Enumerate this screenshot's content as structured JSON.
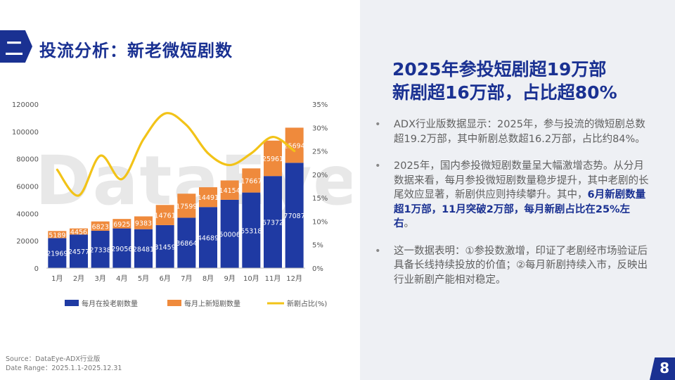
{
  "header": {
    "section_label": "二",
    "title": "投流分析：新老微短剧数"
  },
  "headline": {
    "line1": "2025年参投短剧超19万部",
    "line2": "新剧超16万部，占比超80%"
  },
  "bullets": [
    {
      "text": "ADX行业版数据显示：2025年，参与投流的微短剧总数超19.2万部，其中新剧总数超16.2万部，占比约84%。"
    },
    {
      "text_before": "2025年，国内参投微短剧数量呈大幅激增态势。从分月数据来看，每月参投微短剧数量稳步提升，其中老剧的长尾效应显著，新剧供应则持续攀升。其中，",
      "bold": "6月新剧数量超1万部，11月突破2万部，每月新剧占比在25%左右",
      "text_after": "。"
    },
    {
      "text": "这一数据表明：①参投数激增，印证了老剧经市场验证后具备长线持续投放的价值；②每月新剧持续入市，反映出行业新剧产能相对稳定。"
    }
  ],
  "source": {
    "line1": "Source：DataEye-ADX行业版",
    "line2": "Date Range：2025.1.1-2025.12.31"
  },
  "page_number": "8",
  "watermark": "DataEye",
  "colors": {
    "old": "#1f3aa3",
    "new": "#ef8a3c",
    "ratio": "#f2c318",
    "brand": "#1a3192"
  },
  "chart_data": {
    "type": "bar",
    "stacked": true,
    "categories": [
      "1月",
      "2月",
      "3月",
      "4月",
      "5月",
      "6月",
      "7月",
      "8月",
      "9月",
      "10月",
      "11月",
      "12月"
    ],
    "series": [
      {
        "name": "每月在投老剧数量",
        "type": "bar",
        "axis": "left",
        "values": [
          21969,
          24577,
          27338,
          29056,
          28481,
          31459,
          36864,
          44689,
          50006,
          55318,
          67372,
          77087
        ]
      },
      {
        "name": "每月上新短剧数量",
        "type": "bar",
        "axis": "left",
        "values": [
          5189,
          4456,
          6823,
          6925,
          9383,
          14761,
          17599,
          14491,
          14154,
          17667,
          25961,
          25694
        ]
      },
      {
        "name": "新剧占比(%)",
        "type": "line",
        "axis": "right",
        "values": [
          21,
          15.5,
          24,
          19,
          27.5,
          33,
          30.5,
          24.5,
          22,
          24.5,
          28,
          25
        ]
      }
    ],
    "ylim": [
      0,
      120000
    ],
    "y_ticks": [
      "0",
      "20000",
      "40000",
      "60000",
      "80000",
      "100000",
      "120000"
    ],
    "y2lim": [
      0,
      35
    ],
    "y2_ticks": [
      "0%",
      "5%",
      "10%",
      "15%",
      "20%",
      "25%",
      "30%",
      "35%"
    ],
    "legend_position": "bottom",
    "grid": false
  }
}
